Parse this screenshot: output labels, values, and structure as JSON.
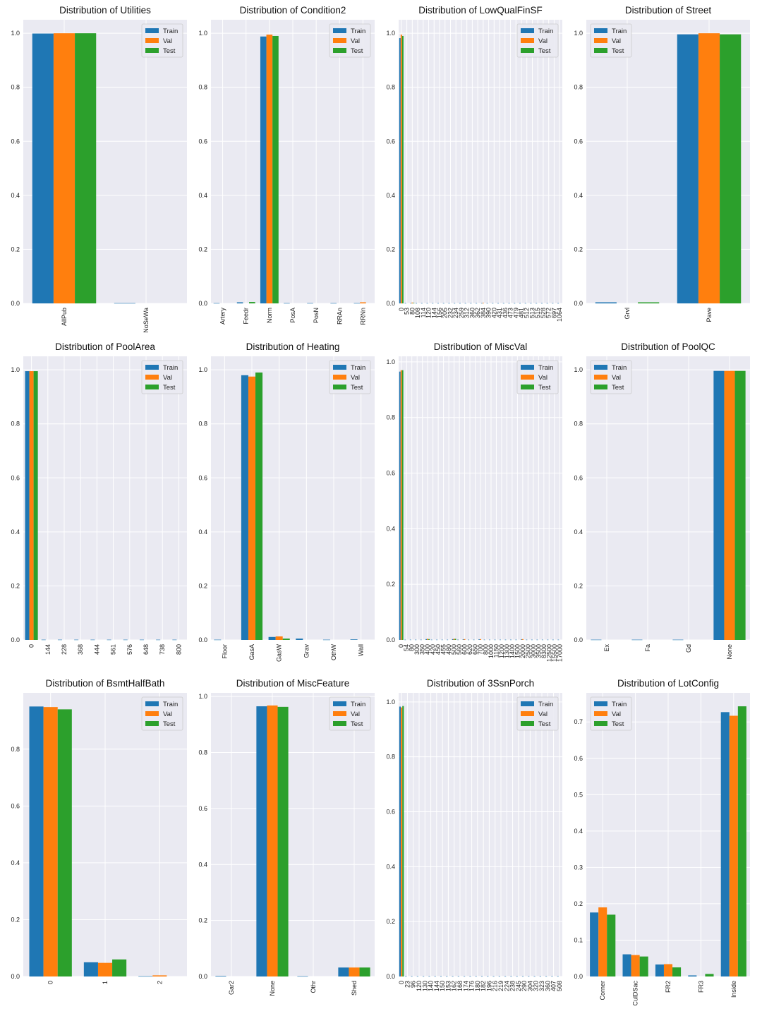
{
  "colors": {
    "train": "#1f77b4",
    "val": "#ff7f0e",
    "test": "#2ca02c",
    "plot_bg": "#eaeaf2",
    "grid": "#ffffff"
  },
  "chart_data": [
    {
      "type": "bar",
      "title": "Distribution of Utilities",
      "categories": [
        "AllPub",
        "NoSeWa"
      ],
      "series": [
        {
          "name": "Train",
          "values": [
            0.999,
            0.001
          ]
        },
        {
          "name": "Val",
          "values": [
            1.0,
            0.0
          ]
        },
        {
          "name": "Test",
          "values": [
            1.0,
            0.0
          ]
        }
      ],
      "ylim": [
        0,
        1.05
      ],
      "yticks": [
        "0.0",
        "0.2",
        "0.4",
        "0.6",
        "0.8",
        "1.0"
      ],
      "legend": [
        "Train",
        "Val",
        "Test"
      ],
      "legend_position": "top-right",
      "grid": true
    },
    {
      "type": "bar",
      "title": "Distribution of Condition2",
      "categories": [
        "Artery",
        "Feedr",
        "Norm",
        "PosA",
        "PosN",
        "RRAn",
        "RRNn"
      ],
      "series": [
        {
          "name": "Train",
          "values": [
            0.001,
            0.004,
            0.988,
            0.001,
            0.001,
            0.001,
            0.001
          ]
        },
        {
          "name": "Val",
          "values": [
            0.0,
            0.0,
            0.995,
            0.0,
            0.0,
            0.0,
            0.004
          ]
        },
        {
          "name": "Test",
          "values": [
            0.0,
            0.005,
            0.99,
            0.0,
            0.0,
            0.0,
            0.0
          ]
        }
      ],
      "ylim": [
        0,
        1.05
      ],
      "yticks": [
        "0.0",
        "0.2",
        "0.4",
        "0.6",
        "0.8",
        "1.0"
      ],
      "legend": [
        "Train",
        "Val",
        "Test"
      ],
      "legend_position": "top-right",
      "grid": true
    },
    {
      "type": "bar",
      "title": "Distribution of LowQualFinSF",
      "categories": [
        "0",
        "53",
        "80",
        "108",
        "114",
        "120",
        "144",
        "156",
        "205",
        "232",
        "234",
        "259",
        "312",
        "360",
        "362",
        "384",
        "390",
        "420",
        "431",
        "436",
        "473",
        "479",
        "481",
        "512",
        "513",
        "515",
        "528",
        "572",
        "697",
        "1064"
      ],
      "series": [
        {
          "name": "Train",
          "values": [
            0.982,
            0.001,
            0.001,
            0.001,
            0.001,
            0.001,
            0.001,
            0.001,
            0.001,
            0.001,
            0.001,
            0.001,
            0.001,
            0.001,
            0.001,
            0.001,
            0.001,
            0.001,
            0.001,
            0.001,
            0.001,
            0.001,
            0.001,
            0.001,
            0.001,
            0.001,
            0.001,
            0.001,
            0.001,
            0.001
          ]
        },
        {
          "name": "Val",
          "values": [
            0.995,
            0.0,
            0.003,
            0.0,
            0.0,
            0.0,
            0.0,
            0.0,
            0.0,
            0.0,
            0.0,
            0.0,
            0.0,
            0.0,
            0.0,
            0.002,
            0.0,
            0.0,
            0.0,
            0.0,
            0.0,
            0.0,
            0.0,
            0.0,
            0.0,
            0.0,
            0.0,
            0.0,
            0.0,
            0.0
          ]
        },
        {
          "name": "Test",
          "values": [
            0.99,
            0.0,
            0.002,
            0.0,
            0.0,
            0.0,
            0.0,
            0.0,
            0.0,
            0.0,
            0.0,
            0.0,
            0.0,
            0.0,
            0.0,
            0.0,
            0.0,
            0.0,
            0.0,
            0.0,
            0.0,
            0.0,
            0.0,
            0.0,
            0.0,
            0.0,
            0.0,
            0.0,
            0.0,
            0.0
          ]
        }
      ],
      "ylim": [
        0,
        1.05
      ],
      "yticks": [
        "0.0",
        "0.2",
        "0.4",
        "0.6",
        "0.8",
        "1.0"
      ],
      "legend": [
        "Train",
        "Val",
        "Test"
      ],
      "legend_position": "top-right",
      "grid": true
    },
    {
      "type": "bar",
      "title": "Distribution of Street",
      "categories": [
        "Grvl",
        "Pave"
      ],
      "series": [
        {
          "name": "Train",
          "values": [
            0.004,
            0.996
          ]
        },
        {
          "name": "Val",
          "values": [
            0.0,
            1.0
          ]
        },
        {
          "name": "Test",
          "values": [
            0.004,
            0.996
          ]
        }
      ],
      "ylim": [
        0,
        1.05
      ],
      "yticks": [
        "0.0",
        "0.2",
        "0.4",
        "0.6",
        "0.8",
        "1.0"
      ],
      "legend": [
        "Train",
        "Val",
        "Test"
      ],
      "legend_position": "top-left",
      "grid": true
    },
    {
      "type": "bar",
      "title": "Distribution of PoolArea",
      "categories": [
        "0",
        "144",
        "228",
        "368",
        "444",
        "561",
        "576",
        "648",
        "738",
        "800"
      ],
      "series": [
        {
          "name": "Train",
          "values": [
            0.995,
            0.001,
            0.001,
            0.001,
            0.001,
            0.001,
            0.001,
            0.001,
            0.001,
            0.001
          ]
        },
        {
          "name": "Val",
          "values": [
            0.995,
            0.0,
            0.0,
            0.0,
            0.0,
            0.0,
            0.0,
            0.0,
            0.0,
            0.0
          ]
        },
        {
          "name": "Test",
          "values": [
            0.995,
            0.0,
            0.0,
            0.0,
            0.0,
            0.0,
            0.0,
            0.0,
            0.0,
            0.0
          ]
        }
      ],
      "ylim": [
        0,
        1.05
      ],
      "yticks": [
        "0.0",
        "0.2",
        "0.4",
        "0.6",
        "0.8",
        "1.0"
      ],
      "legend": [
        "Train",
        "Val",
        "Test"
      ],
      "legend_position": "top-right",
      "grid": true
    },
    {
      "type": "bar",
      "title": "Distribution of Heating",
      "categories": [
        "Floor",
        "GasA",
        "GasW",
        "Grav",
        "OthW",
        "Wall"
      ],
      "series": [
        {
          "name": "Train",
          "values": [
            0.001,
            0.98,
            0.011,
            0.005,
            0.001,
            0.002
          ]
        },
        {
          "name": "Val",
          "values": [
            0.0,
            0.975,
            0.013,
            0.0,
            0.0,
            0.0
          ]
        },
        {
          "name": "Test",
          "values": [
            0.0,
            0.99,
            0.005,
            0.0,
            0.0,
            0.0
          ]
        }
      ],
      "ylim": [
        0,
        1.05
      ],
      "yticks": [
        "0.0",
        "0.2",
        "0.4",
        "0.6",
        "0.8",
        "1.0"
      ],
      "legend": [
        "Train",
        "Val",
        "Test"
      ],
      "legend_position": "top-right",
      "grid": true
    },
    {
      "type": "bar",
      "title": "Distribution of MiscVal",
      "categories": [
        "0",
        "54",
        "80",
        "300",
        "350",
        "400",
        "420",
        "450",
        "455",
        "480",
        "500",
        "560",
        "600",
        "620",
        "650",
        "700",
        "800",
        "1000",
        "1150",
        "1200",
        "1300",
        "1400",
        "1500",
        "2000",
        "2500",
        "3000",
        "3500",
        "8300",
        "12500",
        "15500",
        "17000"
      ],
      "series": [
        {
          "name": "Train",
          "values": [
            0.965,
            0.001,
            0.001,
            0.001,
            0.001,
            0.003,
            0.001,
            0.001,
            0.001,
            0.001,
            0.003,
            0.001,
            0.002,
            0.001,
            0.001,
            0.002,
            0.001,
            0.001,
            0.001,
            0.001,
            0.001,
            0.001,
            0.001,
            0.002,
            0.001,
            0.001,
            0.001,
            0.001,
            0.001,
            0.001,
            0.001
          ]
        },
        {
          "name": "Val",
          "values": [
            0.97,
            0.0,
            0.0,
            0.0,
            0.0,
            0.004,
            0.0,
            0.0,
            0.0,
            0.0,
            0.004,
            0.0,
            0.003,
            0.0,
            0.0,
            0.003,
            0.0,
            0.0,
            0.0,
            0.0,
            0.0,
            0.0,
            0.0,
            0.003,
            0.0,
            0.0,
            0.0,
            0.0,
            0.0,
            0.0,
            0.0
          ]
        },
        {
          "name": "Test",
          "values": [
            0.97,
            0.0,
            0.0,
            0.0,
            0.0,
            0.003,
            0.0,
            0.0,
            0.0,
            0.0,
            0.004,
            0.0,
            0.0,
            0.0,
            0.0,
            0.0,
            0.0,
            0.0,
            0.0,
            0.0,
            0.0,
            0.0,
            0.0,
            0.0,
            0.0,
            0.0,
            0.0,
            0.0,
            0.0,
            0.0,
            0.0
          ]
        }
      ],
      "ylim": [
        0,
        1.02
      ],
      "yticks": [
        "0.0",
        "0.2",
        "0.4",
        "0.6",
        "0.8",
        "1.0"
      ],
      "legend": [
        "Train",
        "Val",
        "Test"
      ],
      "legend_position": "top-right",
      "grid": true
    },
    {
      "type": "bar",
      "title": "Distribution of PoolQC",
      "categories": [
        "Ex",
        "Fa",
        "Gd",
        "None"
      ],
      "series": [
        {
          "name": "Train",
          "values": [
            0.001,
            0.001,
            0.001,
            0.996
          ]
        },
        {
          "name": "Val",
          "values": [
            0.0,
            0.0,
            0.0,
            0.996
          ]
        },
        {
          "name": "Test",
          "values": [
            0.0,
            0.0,
            0.0,
            0.996
          ]
        }
      ],
      "ylim": [
        0,
        1.05
      ],
      "yticks": [
        "0.0",
        "0.2",
        "0.4",
        "0.6",
        "0.8",
        "1.0"
      ],
      "legend": [
        "Train",
        "Val",
        "Test"
      ],
      "legend_position": "top-left",
      "grid": true
    },
    {
      "type": "bar",
      "title": "Distribution of BsmtHalfBath",
      "categories": [
        "0",
        "1",
        "2"
      ],
      "series": [
        {
          "name": "Train",
          "values": [
            0.95,
            0.05,
            0.001
          ]
        },
        {
          "name": "Val",
          "values": [
            0.948,
            0.048,
            0.004
          ]
        },
        {
          "name": "Test",
          "values": [
            0.94,
            0.06,
            0.0
          ]
        }
      ],
      "ylim": [
        0,
        0.998
      ],
      "yticks": [
        "0.0",
        "0.2",
        "0.4",
        "0.6",
        "0.8"
      ],
      "legend": [
        "Train",
        "Val",
        "Test"
      ],
      "legend_position": "top-right",
      "grid": true
    },
    {
      "type": "bar",
      "title": "Distribution of MiscFeature",
      "categories": [
        "Gar2",
        "None",
        "Othr",
        "Shed"
      ],
      "series": [
        {
          "name": "Train",
          "values": [
            0.002,
            0.965,
            0.001,
            0.032
          ]
        },
        {
          "name": "Val",
          "values": [
            0.0,
            0.968,
            0.0,
            0.032
          ]
        },
        {
          "name": "Test",
          "values": [
            0.0,
            0.963,
            0.0,
            0.032
          ]
        }
      ],
      "ylim": [
        0,
        1.013
      ],
      "yticks": [
        "0.0",
        "0.2",
        "0.4",
        "0.6",
        "0.8",
        "1.0"
      ],
      "legend": [
        "Train",
        "Val",
        "Test"
      ],
      "legend_position": "top-right",
      "grid": true
    },
    {
      "type": "bar",
      "title": "Distribution of 3SsnPorch",
      "categories": [
        "0",
        "23",
        "96",
        "120",
        "130",
        "140",
        "144",
        "150",
        "153",
        "162",
        "168",
        "174",
        "176",
        "180",
        "182",
        "196",
        "216",
        "219",
        "224",
        "238",
        "245",
        "290",
        "304",
        "320",
        "323",
        "360",
        "407",
        "508"
      ],
      "series": [
        {
          "name": "Train",
          "values": [
            0.983,
            0.001,
            0.001,
            0.001,
            0.001,
            0.001,
            0.001,
            0.001,
            0.001,
            0.001,
            0.001,
            0.001,
            0.001,
            0.001,
            0.001,
            0.001,
            0.001,
            0.001,
            0.001,
            0.001,
            0.001,
            0.001,
            0.001,
            0.001,
            0.001,
            0.001,
            0.001,
            0.001
          ]
        },
        {
          "name": "Val",
          "values": [
            0.98,
            0.0,
            0.0,
            0.0,
            0.0,
            0.0,
            0.0,
            0.0,
            0.0,
            0.0,
            0.0,
            0.0,
            0.0,
            0.0,
            0.0,
            0.0,
            0.0,
            0.0,
            0.0,
            0.0,
            0.0,
            0.0,
            0.0,
            0.0,
            0.0,
            0.0,
            0.0,
            0.0
          ]
        },
        {
          "name": "Test",
          "values": [
            0.985,
            0.0,
            0.0,
            0.0,
            0.0,
            0.0,
            0.0,
            0.0,
            0.0,
            0.0,
            0.0,
            0.0,
            0.0,
            0.0,
            0.0,
            0.0,
            0.0,
            0.0,
            0.0,
            0.0,
            0.0,
            0.0,
            0.0,
            0.0,
            0.0,
            0.0,
            0.0,
            0.0
          ]
        }
      ],
      "ylim": [
        0,
        1.033
      ],
      "yticks": [
        "0.0",
        "0.2",
        "0.4",
        "0.6",
        "0.8",
        "1.0"
      ],
      "legend": [
        "Train",
        "Val",
        "Test"
      ],
      "legend_position": "top-right",
      "grid": true
    },
    {
      "type": "bar",
      "title": "Distribution of LotConfig",
      "categories": [
        "Corner",
        "CulDSac",
        "FR2",
        "FR3",
        "Inside"
      ],
      "series": [
        {
          "name": "Train",
          "values": [
            0.176,
            0.061,
            0.033,
            0.003,
            0.727
          ]
        },
        {
          "name": "Val",
          "values": [
            0.19,
            0.059,
            0.034,
            0.0,
            0.717
          ]
        },
        {
          "name": "Test",
          "values": [
            0.17,
            0.055,
            0.025,
            0.007,
            0.743
          ]
        }
      ],
      "ylim": [
        0,
        0.78
      ],
      "yticks": [
        "0.0",
        "0.1",
        "0.2",
        "0.3",
        "0.4",
        "0.5",
        "0.6",
        "0.7"
      ],
      "legend": [
        "Train",
        "Val",
        "Test"
      ],
      "legend_position": "top-left",
      "grid": true
    }
  ]
}
